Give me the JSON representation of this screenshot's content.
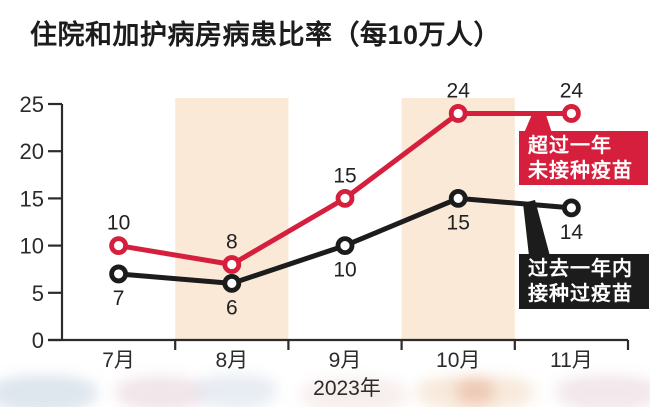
{
  "title": "住院和加护病房病患比率（每10万人）",
  "chart_data": {
    "type": "line",
    "categories": [
      "7月",
      "8月",
      "9月",
      "10月",
      "11月"
    ],
    "x_axis_label": "2023年",
    "ylim": [
      0,
      25
    ],
    "yticks": [
      0,
      5,
      10,
      15,
      20,
      25
    ],
    "grid": false,
    "highlight_band_categories": [
      "8月",
      "10月"
    ],
    "band_color": "#fbe9d7",
    "series": [
      {
        "name": "超过一年未接种疫苗",
        "color": "#d51f3c",
        "values": [
          10,
          8,
          15,
          24,
          24
        ],
        "value_label_position": "above"
      },
      {
        "name": "过去一年内接种过疫苗",
        "color": "#1c1c1c",
        "values": [
          7,
          6,
          10,
          15,
          14
        ],
        "value_label_position": "below"
      }
    ],
    "legend_position": "right-callout-boxes"
  },
  "legend": {
    "unvaccinated": {
      "line1": "超过一年",
      "line2": "未接种疫苗",
      "bg": "#d51f3c"
    },
    "vaccinated": {
      "line1": "过去一年内",
      "line2": "接种过疫苗",
      "bg": "#1c1c1c"
    }
  },
  "colors": {
    "accent_red": "#d51f3c",
    "series_black": "#1c1c1c",
    "band": "#fbe9d7",
    "axis": "#2b2b2b",
    "value_label": "#222222"
  }
}
